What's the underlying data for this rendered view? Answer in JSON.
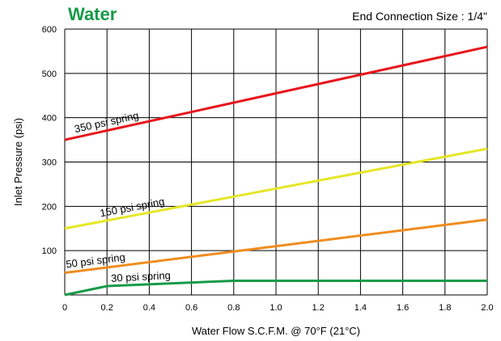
{
  "chart_data": {
    "type": "line",
    "title": "Water",
    "subtitle": "End Connection Size : 1/4\"",
    "xlabel": "Water Flow S.C.F.M. @ 70°F (21°C)",
    "ylabel": "Inlet Pressure (psi)",
    "xlim": [
      0,
      2.0
    ],
    "ylim": [
      0,
      600
    ],
    "x_ticks": [
      "0",
      "0.2",
      "0.4",
      "0.6",
      "0.8",
      "1.0",
      "1.2",
      "1.4",
      "1.6",
      "1.8",
      "2.0"
    ],
    "y_ticks": [
      "100",
      "200",
      "300",
      "400",
      "500",
      "600"
    ],
    "grid": true,
    "series": [
      {
        "name": "350 psi spring",
        "color": "#e8141c",
        "x": [
          0,
          2.0
        ],
        "y": [
          350,
          560
        ]
      },
      {
        "name": "150 psi spring",
        "color": "#e6e625",
        "x": [
          0,
          2.0
        ],
        "y": [
          150,
          330
        ]
      },
      {
        "name": "50 psi spring",
        "color": "#f08c1e",
        "x": [
          0,
          2.0
        ],
        "y": [
          50,
          170
        ]
      },
      {
        "name": "30 psi spring",
        "color": "#169a48",
        "x": [
          0,
          0.2,
          0.8,
          2.0
        ],
        "y": [
          0,
          20,
          32,
          32
        ]
      }
    ],
    "title_color": "#169a48"
  }
}
